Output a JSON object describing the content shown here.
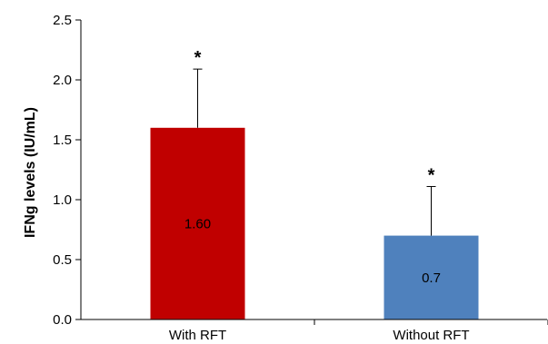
{
  "chart_data": {
    "type": "bar",
    "title": "",
    "xlabel": "",
    "ylabel": "IFNg levels (IU/mL)",
    "categories": [
      "With RFT",
      "Without RFT"
    ],
    "values": [
      1.6,
      0.7
    ],
    "errors": [
      0.49,
      0.41
    ],
    "data_labels": [
      "1.60",
      "0.7"
    ],
    "significance": [
      "*",
      "*"
    ],
    "colors": [
      "#c00000",
      "#4f81bd"
    ],
    "ylim": [
      0,
      2.5
    ],
    "yticks": [
      0,
      0.5,
      1,
      1.5,
      2,
      2.5
    ],
    "ytick_labels": [
      "0.0",
      "0.5",
      "1.0",
      "1.5",
      "2.0",
      "2.5"
    ],
    "grid": false,
    "legend": "none"
  }
}
